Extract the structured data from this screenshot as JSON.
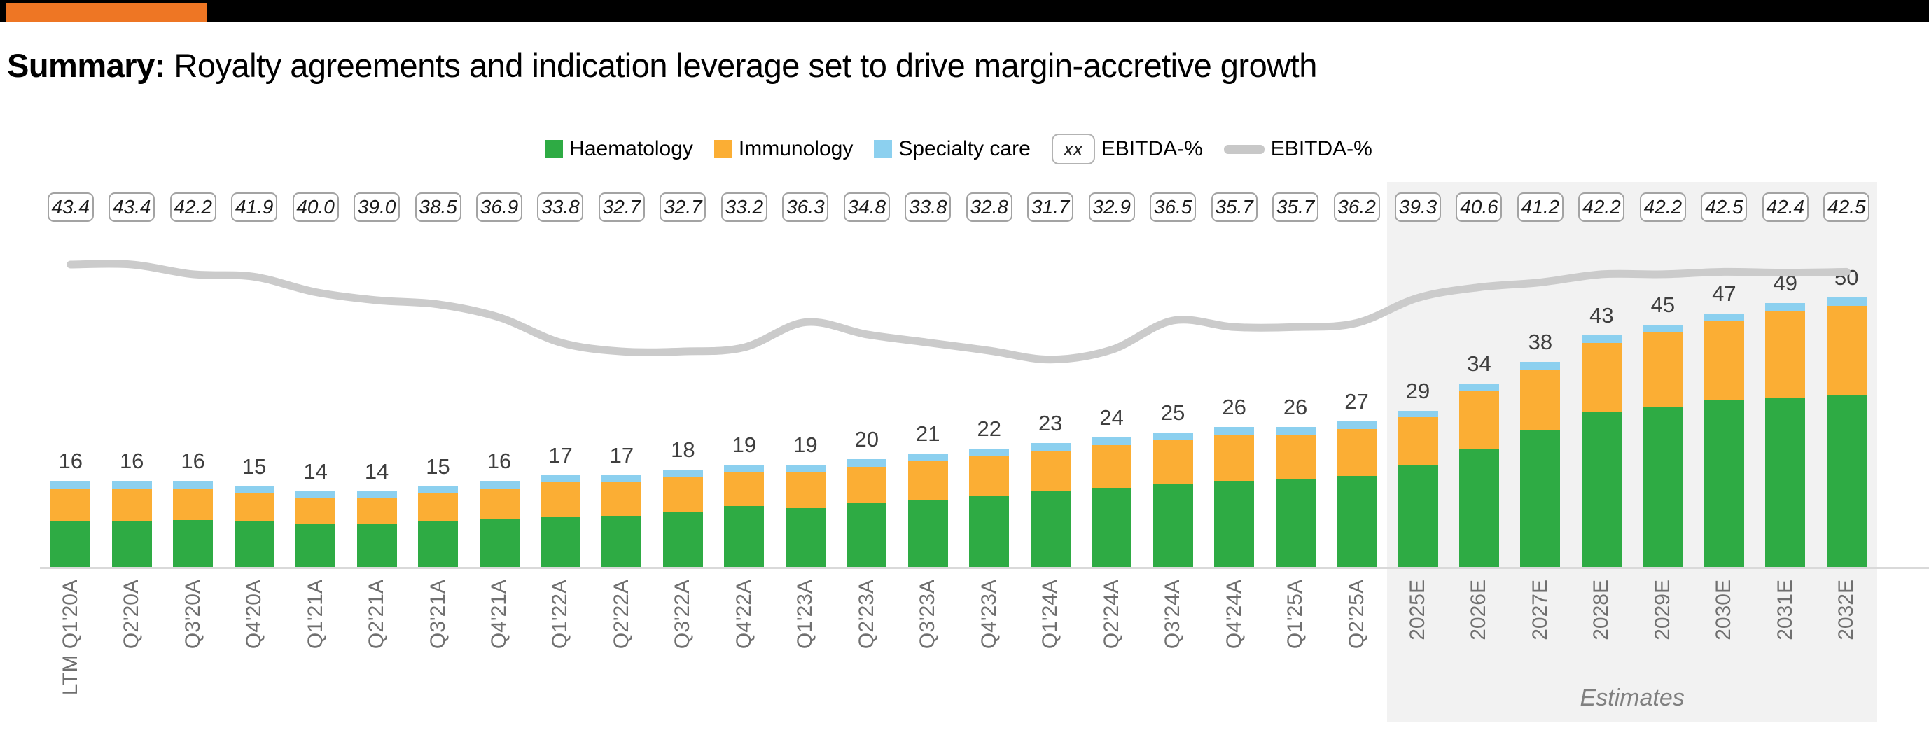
{
  "header": {
    "title_bold": "Summary:",
    "title_rest": " Royalty agreements and indication leverage set to drive margin-accretive growth"
  },
  "legend": {
    "haematology": "Haematology",
    "immunology": "Immunology",
    "specialty": "Specialty care",
    "xx_sample": "xx",
    "ebitda_boxed": "EBITDA-%",
    "ebitda_line": "EBITDA-%"
  },
  "colors": {
    "accent_orange": "#EE7624",
    "top_bar": "#000000",
    "haematology_green": "#2EAB44",
    "immunology_orange": "#FBAE34",
    "specialty_blue": "#8CD0EF",
    "ebitda_line_gray": "#CBCBCB",
    "axis_gray": "#D9D9D9",
    "estimates_bg": "#F2F2F2"
  },
  "chart_data": {
    "type": "bar",
    "subtype": "stacked-bars-with-line",
    "categories": [
      "LTM Q1'20A",
      "Q2'20A",
      "Q3'20A",
      "Q4'20A",
      "Q1'21A",
      "Q2'21A",
      "Q3'21A",
      "Q4'21A",
      "Q1'22A",
      "Q2'22A",
      "Q3'22A",
      "Q4'22A",
      "Q1'23A",
      "Q2'23A",
      "Q3'23A",
      "Q4'23A",
      "Q1'24A",
      "Q2'24A",
      "Q3'24A",
      "Q4'24A",
      "Q1'25A",
      "Q2'25A",
      "2025E",
      "2026E",
      "2027E",
      "2028E",
      "2029E",
      "2030E",
      "2031E",
      "2032E"
    ],
    "series": [
      {
        "name": "Haematology",
        "color": "#2EAB44",
        "values": [
          8.6,
          8.6,
          8.7,
          8.4,
          7.9,
          7.9,
          8.4,
          8.9,
          9.3,
          9.5,
          10.1,
          11.3,
          10.9,
          11.8,
          12.5,
          13.3,
          14.0,
          14.7,
          15.3,
          16.0,
          16.2,
          16.9,
          19.0,
          22.0,
          25.4,
          28.7,
          29.6,
          31.0,
          31.3,
          31.9
        ]
      },
      {
        "name": "Immunology",
        "color": "#FBAE34",
        "values": [
          5.9,
          5.9,
          5.8,
          5.4,
          4.9,
          4.9,
          5.3,
          5.7,
          6.4,
          6.2,
          6.5,
          6.3,
          6.8,
          6.8,
          7.1,
          7.4,
          7.6,
          7.9,
          8.3,
          8.6,
          8.4,
          8.7,
          8.8,
          10.7,
          11.2,
          12.9,
          14.0,
          14.6,
          16.2,
          16.5
        ]
      },
      {
        "name": "Specialty care",
        "color": "#8CD0EF",
        "values": [
          1.5,
          1.5,
          1.5,
          1.2,
          1.2,
          1.2,
          1.3,
          1.4,
          1.3,
          1.3,
          1.4,
          1.4,
          1.3,
          1.4,
          1.4,
          1.3,
          1.4,
          1.4,
          1.4,
          1.4,
          1.4,
          1.4,
          1.2,
          1.3,
          1.4,
          1.4,
          1.4,
          1.4,
          1.5,
          1.6
        ]
      }
    ],
    "totals": [
      16,
      16,
      16,
      15,
      14,
      14,
      15,
      16,
      17,
      17,
      18,
      19,
      19,
      20,
      21,
      22,
      23,
      24,
      25,
      26,
      26,
      27,
      29,
      34,
      38,
      43,
      45,
      47,
      49,
      50
    ],
    "line_series": {
      "name": "EBITDA-%",
      "color": "#CBCBCB",
      "values": [
        43.4,
        43.4,
        42.2,
        41.9,
        40.0,
        39.0,
        38.5,
        36.9,
        33.8,
        32.7,
        32.7,
        33.2,
        36.3,
        34.8,
        33.8,
        32.8,
        31.7,
        32.9,
        36.5,
        35.7,
        35.7,
        36.2,
        39.3,
        40.6,
        41.2,
        42.2,
        42.2,
        42.5,
        42.4,
        42.5
      ]
    },
    "estimate_start_index": 22,
    "estimates_label": "Estimates",
    "legend_position": "top-center",
    "grid": false,
    "value_labels": "above-bars",
    "ebitda_labels": "boxed-row-above-chart"
  }
}
